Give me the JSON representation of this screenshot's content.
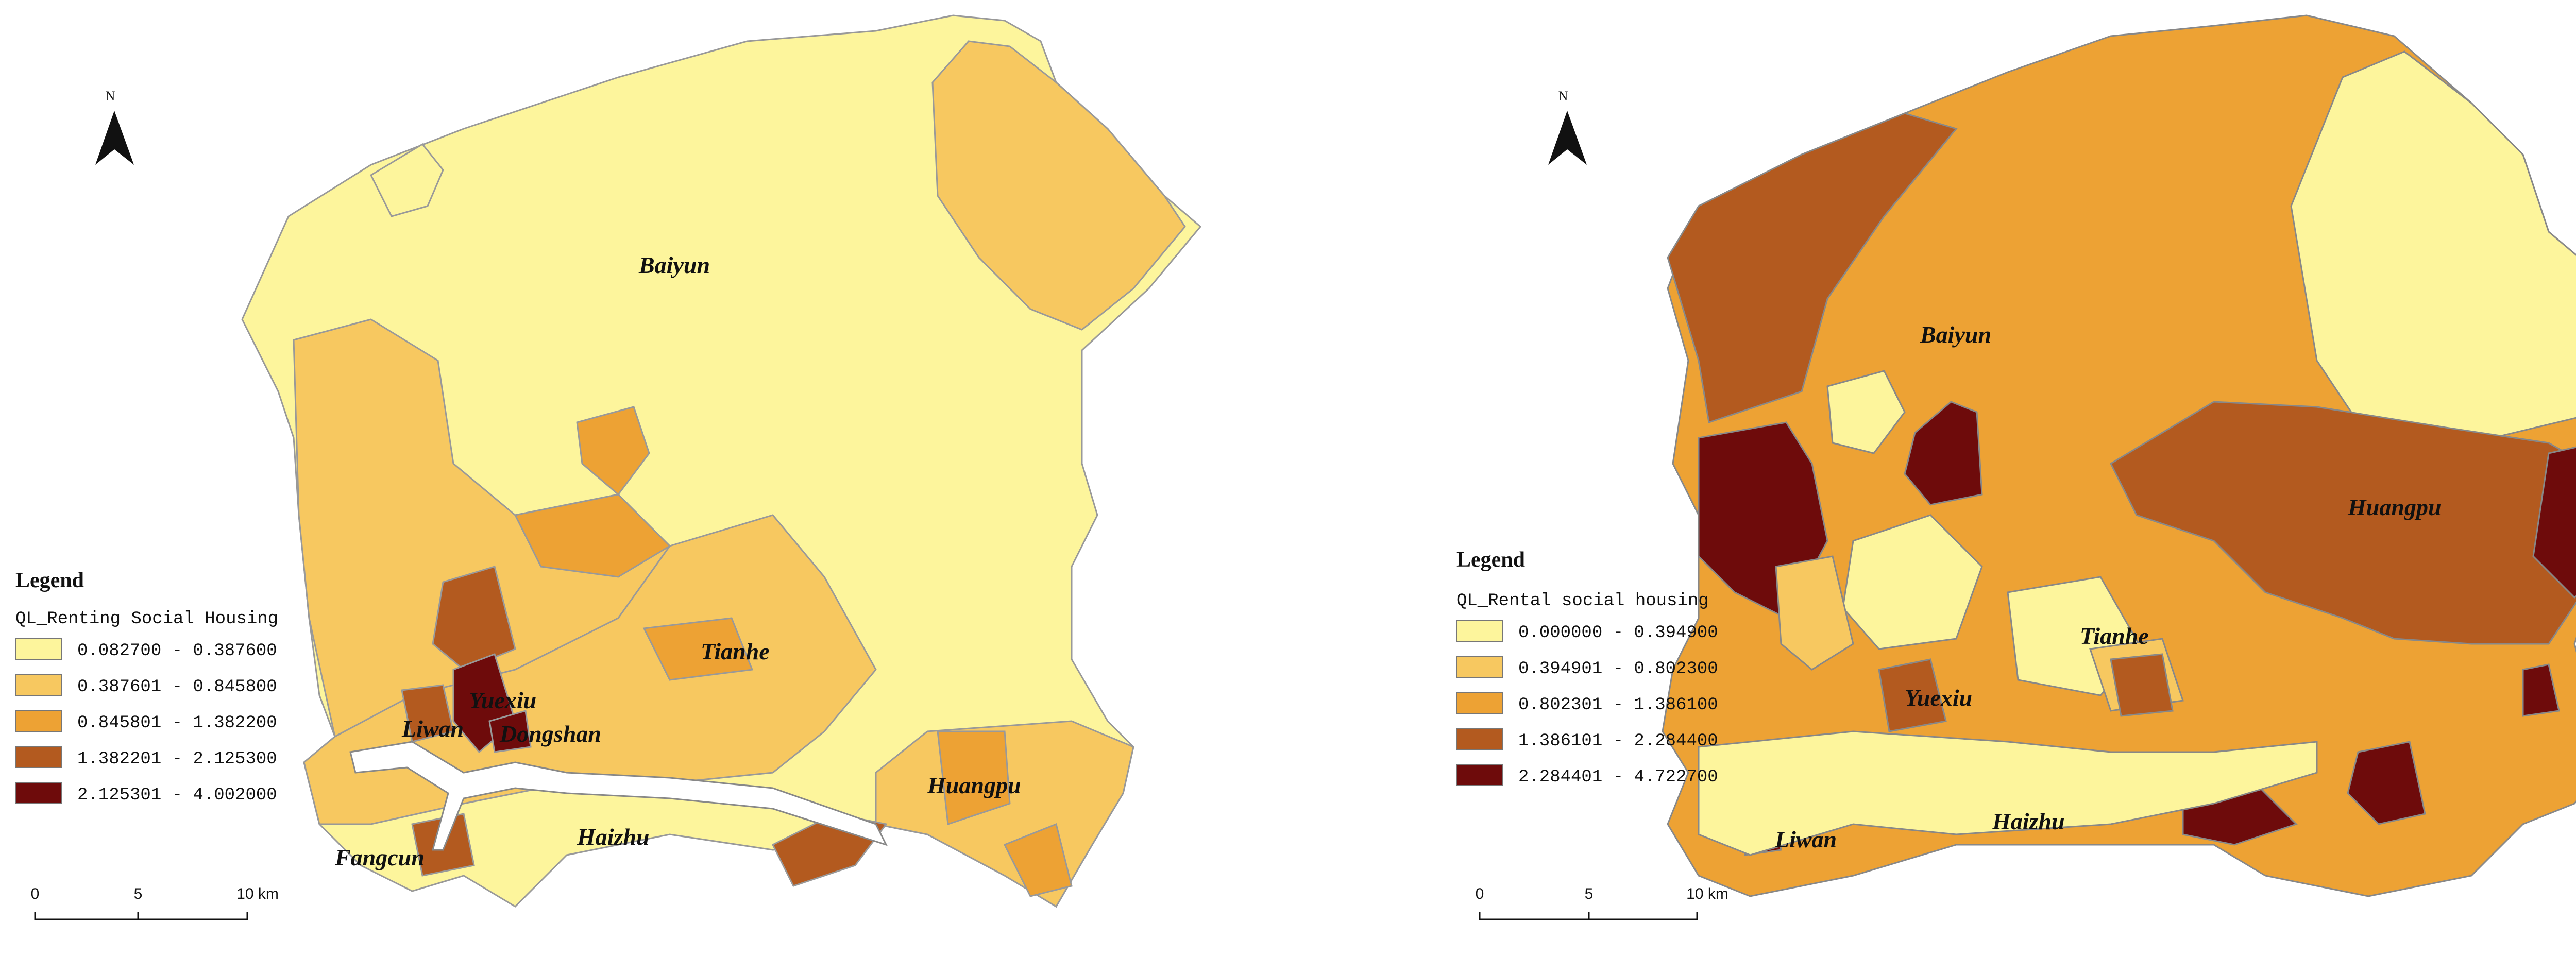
{
  "maps": [
    {
      "north": "N",
      "legend_title": "Legend",
      "field_name": "QL_Renting Social Housing",
      "classes": [
        {
          "label": "0.082700 - 0.387600",
          "color": "#fdf59c"
        },
        {
          "label": "0.387601 - 0.845800",
          "color": "#f7c860"
        },
        {
          "label": "0.845801 - 1.382200",
          "color": "#eda234"
        },
        {
          "label": "1.382201 - 2.125300",
          "color": "#b35a1f"
        },
        {
          "label": "2.125301 - 4.002000",
          "color": "#6e0b0b"
        }
      ],
      "scale": {
        "ticks": [
          "0",
          "5",
          "10 km"
        ]
      },
      "districts": [
        "Baiyun",
        "Tianhe",
        "Yuexiu",
        "Liwan",
        "Dongshan",
        "Fangcun",
        "Haizhu",
        "Huangpu"
      ]
    },
    {
      "north": "N",
      "legend_title": "Legend",
      "field_name": "QL_Rental social housing",
      "classes": [
        {
          "label": "0.000000 - 0.394900",
          "color": "#fdf59c"
        },
        {
          "label": "0.394901 - 0.802300",
          "color": "#f7c860"
        },
        {
          "label": "0.802301 - 1.386100",
          "color": "#eda234"
        },
        {
          "label": "1.386101 - 2.284400",
          "color": "#b35a1f"
        },
        {
          "label": "2.284401 - 4.722700",
          "color": "#6e0b0b"
        }
      ],
      "scale": {
        "ticks": [
          "0",
          "5",
          "10 km"
        ]
      },
      "districts": [
        "Baiyun",
        "Huangpu",
        "Tianhe",
        "Yuexiu",
        "Liwan",
        "Haizhu"
      ]
    }
  ]
}
